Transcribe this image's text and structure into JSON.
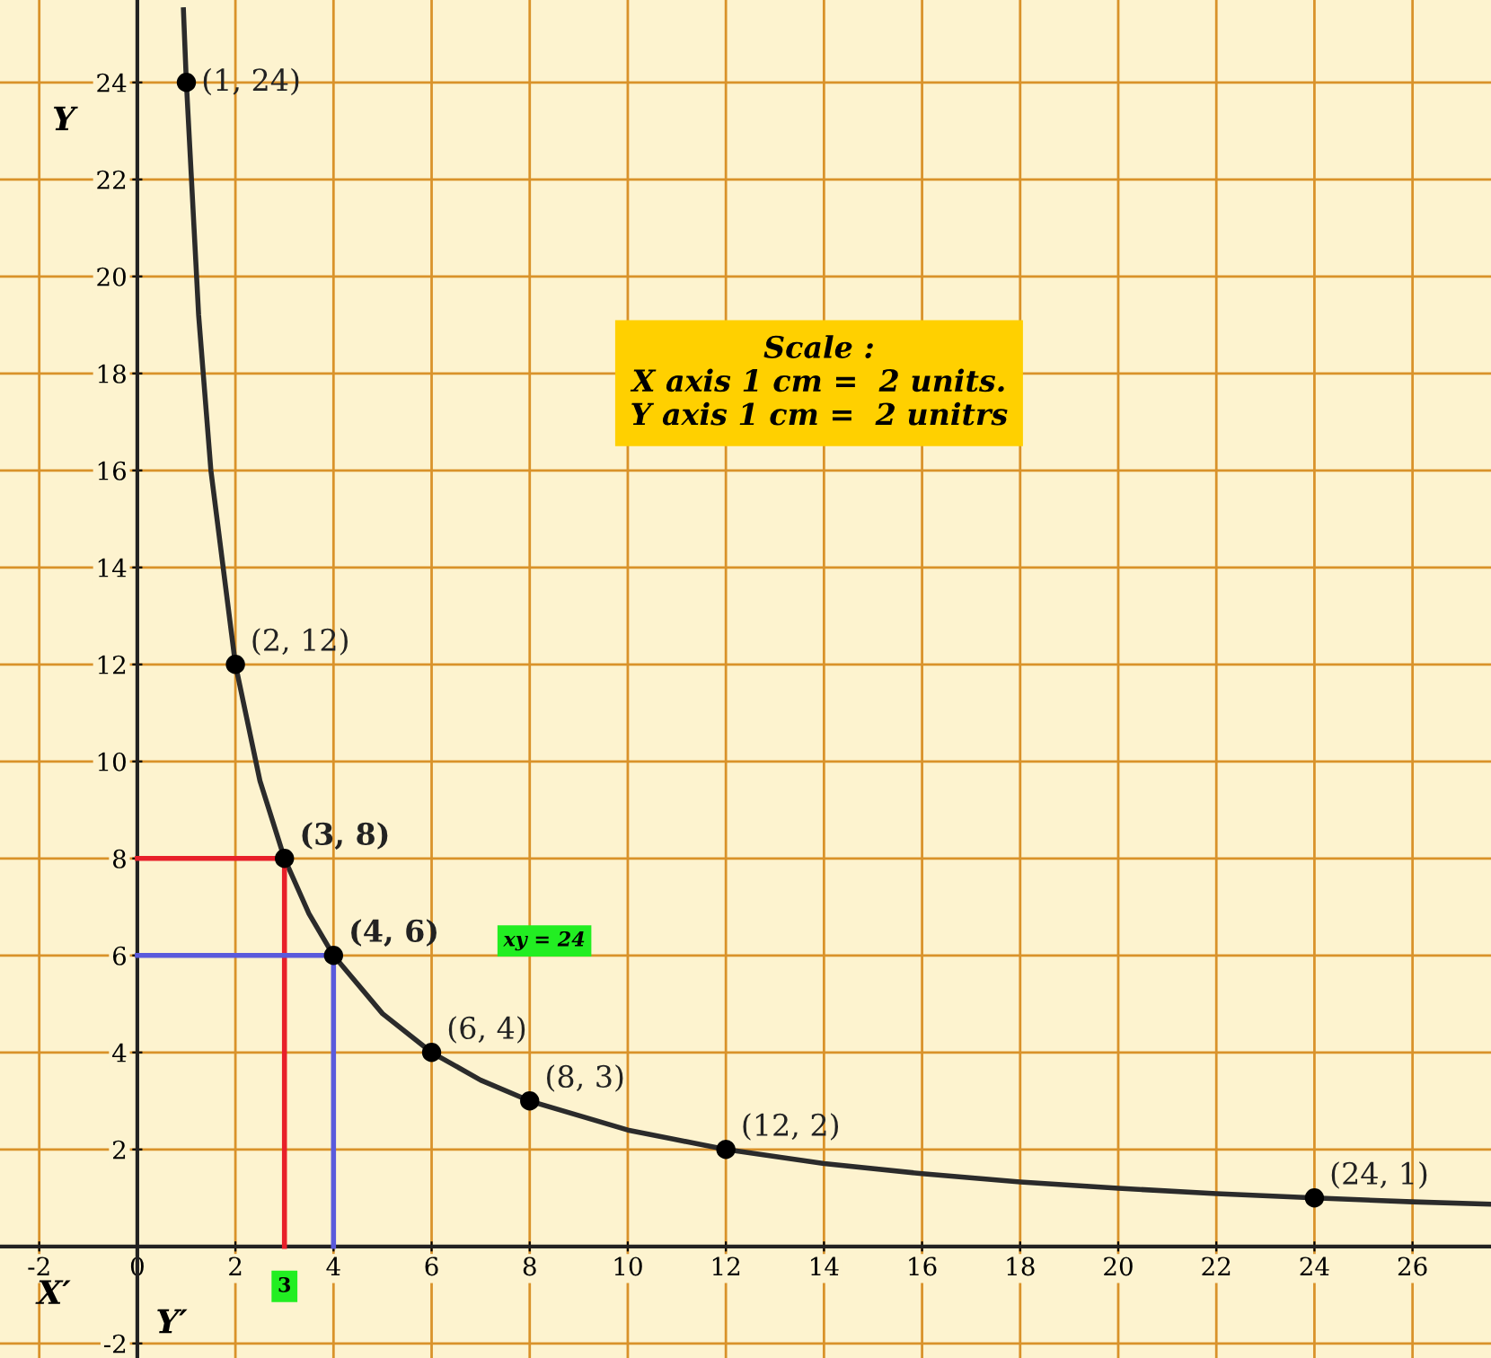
{
  "chart_data": {
    "type": "line",
    "xlim": [
      -2.8,
      27.6
    ],
    "ylim": [
      -2.3,
      25.7
    ],
    "xticks": [
      -2,
      0,
      2,
      4,
      6,
      8,
      10,
      12,
      14,
      16,
      18,
      20,
      22,
      24,
      26
    ],
    "yticks": [
      -2,
      2,
      4,
      6,
      8,
      10,
      12,
      14,
      16,
      18,
      20,
      22,
      24
    ],
    "grid": true,
    "series": [
      {
        "color": "#2b2b2b",
        "x": [
          0.94,
          1,
          1.25,
          1.5,
          2,
          2.5,
          3,
          3.5,
          4,
          5,
          6,
          7,
          8,
          10,
          12,
          14,
          16,
          18,
          20,
          22,
          24,
          26,
          27.6
        ],
        "values": [
          25.5,
          24,
          19.2,
          16,
          12,
          9.6,
          8,
          6.86,
          6,
          4.8,
          4,
          3.43,
          3,
          2.4,
          2,
          1.71,
          1.5,
          1.33,
          1.2,
          1.09,
          1,
          0.92,
          0.87
        ]
      },
      {
        "type": "line",
        "color": "#e8202a",
        "x": [
          3,
          3,
          0
        ],
        "values": [
          0,
          8,
          8
        ]
      },
      {
        "type": "line",
        "color": "#5a5adc",
        "x": [
          4,
          4,
          0
        ],
        "values": [
          0,
          6,
          6
        ]
      },
      {
        "type": "scatter",
        "color": "#000000",
        "marker": "circle",
        "x": [
          1,
          2,
          3,
          4,
          6,
          8,
          12,
          24
        ],
        "values": [
          24,
          12,
          8,
          6,
          4,
          3,
          2,
          1
        ]
      }
    ],
    "annotations": [
      {
        "text": "(1, 24)",
        "x": 1,
        "y": 24
      },
      {
        "text": "(2, 12)",
        "x": 2,
        "y": 12
      },
      {
        "text": "(3, 8)",
        "x": 3,
        "y": 8
      },
      {
        "text": "(4, 6)",
        "x": 4,
        "y": 6
      },
      {
        "text": "(6, 4)",
        "x": 6,
        "y": 4
      },
      {
        "text": "(8, 3)",
        "x": 8,
        "y": 3
      },
      {
        "text": "(12, 2)",
        "x": 12,
        "y": 2
      },
      {
        "text": "(24, 1)",
        "x": 24,
        "y": 1
      },
      {
        "text": "3",
        "x": 3,
        "y": 0
      },
      "Scale :\nX axis 1 cm =  2 units.\nY axis 1 cm =  2 unitrs",
      "xy = 24",
      "Y",
      "X′",
      "Y′"
    ]
  }
}
